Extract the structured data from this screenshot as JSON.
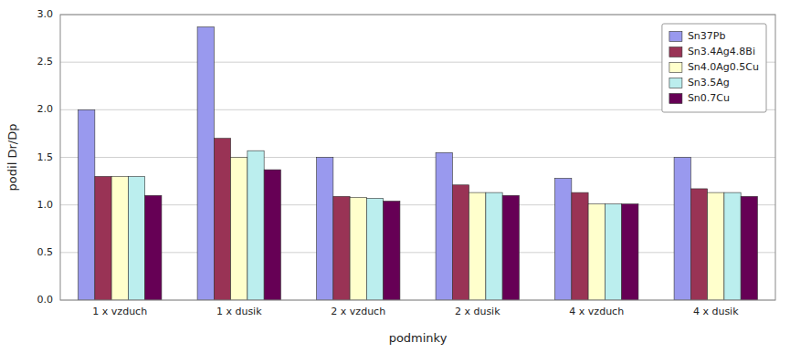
{
  "chart_data": {
    "type": "bar",
    "xlabel": "podminky",
    "ylabel": "podil Dr/Dp",
    "categories": [
      "1 x vzduch",
      "1 x dusik",
      "2 x vzduch",
      "2 x dusik",
      "4 x vzduch",
      "4 x dusik"
    ],
    "series": [
      {
        "name": "Sn37Pb",
        "color": "#9999ee",
        "values": [
          2.0,
          2.87,
          1.5,
          1.55,
          1.28,
          1.5
        ]
      },
      {
        "name": "Sn3.4Ag4.8Bi",
        "color": "#993355",
        "values": [
          1.3,
          1.7,
          1.09,
          1.21,
          1.13,
          1.17
        ]
      },
      {
        "name": "Sn4.0Ag0.5Cu",
        "color": "#ffffcc",
        "values": [
          1.3,
          1.5,
          1.08,
          1.13,
          1.01,
          1.13
        ]
      },
      {
        "name": "Sn3.5Ag",
        "color": "#bbeeee",
        "values": [
          1.3,
          1.57,
          1.07,
          1.13,
          1.01,
          1.13
        ]
      },
      {
        "name": "Sn0.7Cu",
        "color": "#660055",
        "values": [
          1.1,
          1.37,
          1.04,
          1.1,
          1.01,
          1.09
        ]
      }
    ],
    "ylim": [
      0,
      3
    ],
    "yticks": [
      {
        "value": 0,
        "label": "0.0"
      },
      0.5,
      {
        "value": 1,
        "label": "1.0"
      },
      1.5,
      {
        "value": 2,
        "label": "2.0"
      },
      2.5,
      {
        "value": 3,
        "label": "3.0"
      }
    ],
    "grid": true,
    "legend": "upper right"
  }
}
